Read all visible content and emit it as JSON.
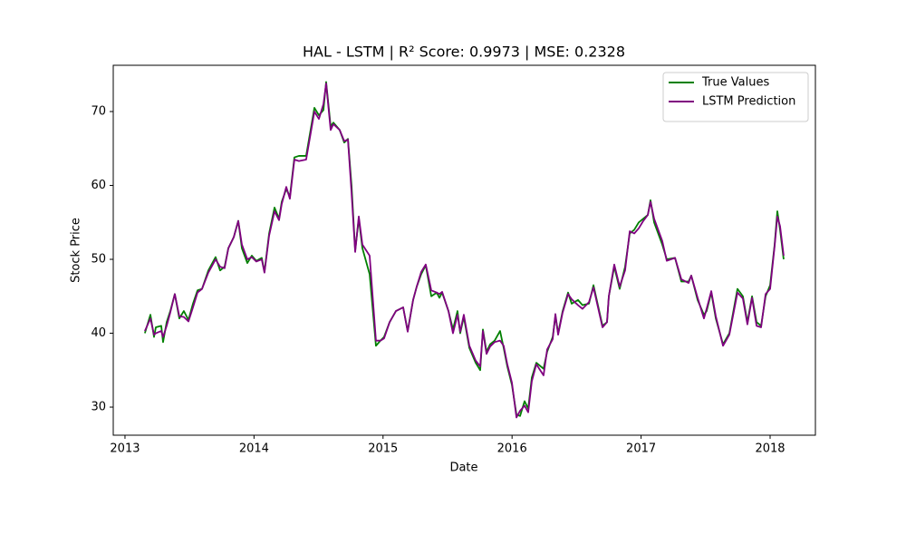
{
  "chart_data": {
    "type": "line",
    "title": "HAL - LSTM | R² Score: 0.9973 | MSE: 0.2328",
    "x_label": "Date",
    "y_label": "Stock Price",
    "x": [
      2013.154,
      2013.197,
      2013.225,
      2013.239,
      2013.281,
      2013.295,
      2013.323,
      2013.351,
      2013.386,
      2013.421,
      2013.456,
      2013.492,
      2013.527,
      2013.562,
      2013.597,
      2013.646,
      2013.702,
      2013.737,
      2013.772,
      2013.801,
      2013.843,
      2013.878,
      2013.906,
      2013.948,
      2013.983,
      2014.018,
      2014.06,
      2014.081,
      2014.117,
      2014.159,
      2014.194,
      2014.215,
      2014.25,
      2014.278,
      2014.313,
      2014.348,
      2014.404,
      2014.468,
      2014.503,
      2014.538,
      2014.559,
      2014.594,
      2014.615,
      2014.664,
      2014.699,
      2014.728,
      2014.756,
      2014.784,
      2014.812,
      2014.84,
      2014.896,
      2014.945,
      2014.98,
      2015.008,
      2015.051,
      2015.1,
      2015.156,
      2015.191,
      2015.233,
      2015.261,
      2015.296,
      2015.331,
      2015.374,
      2015.416,
      2015.437,
      2015.458,
      2015.507,
      2015.542,
      2015.577,
      2015.598,
      2015.626,
      2015.669,
      2015.718,
      2015.753,
      2015.774,
      2015.802,
      2015.83,
      2015.865,
      2015.907,
      2015.935,
      2015.963,
      2015.999,
      2016.034,
      2016.062,
      2016.097,
      2016.125,
      2016.153,
      2016.188,
      2016.244,
      2016.272,
      2016.315,
      2016.336,
      2016.357,
      2016.392,
      2016.434,
      2016.462,
      2016.511,
      2016.546,
      2016.596,
      2016.631,
      2016.701,
      2016.736,
      2016.75,
      2016.792,
      2016.834,
      2016.876,
      2016.912,
      2016.947,
      2016.982,
      2017.017,
      2017.052,
      2017.073,
      2017.101,
      2017.164,
      2017.199,
      2017.263,
      2017.312,
      2017.368,
      2017.389,
      2017.438,
      2017.487,
      2017.508,
      2017.544,
      2017.579,
      2017.635,
      2017.684,
      2017.747,
      2017.789,
      2017.824,
      2017.86,
      2017.895,
      2017.93,
      2017.965,
      2018.0,
      2018.035,
      2018.056,
      2018.077,
      2018.105
    ],
    "series": [
      {
        "name": "True Values",
        "color": "#008000",
        "values": [
          40,
          42.5,
          39.5,
          40.8,
          41,
          38.8,
          41.5,
          43,
          45.3,
          42,
          43,
          41.8,
          44,
          45.8,
          46,
          48.5,
          50.3,
          48.5,
          49,
          51.5,
          53,
          55.2,
          51.5,
          49.5,
          50.5,
          49.8,
          50.2,
          48.3,
          53.5,
          57,
          55.5,
          57.8,
          59.5,
          58.5,
          63.8,
          64,
          64,
          70.5,
          69.5,
          70.2,
          74,
          68,
          68.5,
          67.5,
          65.8,
          66.3,
          60,
          51.2,
          55.5,
          51.5,
          48,
          38.3,
          39,
          39.5,
          41.5,
          43,
          43.5,
          40.3,
          44.5,
          46.3,
          48,
          49.2,
          45,
          45.5,
          44.8,
          45.5,
          43,
          40.5,
          43,
          40,
          42.2,
          38,
          36,
          35,
          40.5,
          37.5,
          38.5,
          39,
          40.3,
          38,
          35.5,
          33,
          29,
          28.8,
          30.8,
          29.8,
          34,
          36,
          35.2,
          37.5,
          39.5,
          42.3,
          40,
          43,
          45.5,
          44,
          44.5,
          43.8,
          44,
          46.5,
          41,
          41.5,
          45,
          49,
          46,
          49,
          53.5,
          54,
          55,
          55.5,
          56,
          58,
          55,
          52,
          50,
          50.2,
          47,
          47,
          47.8,
          44.5,
          42.5,
          43,
          45.5,
          42,
          38.5,
          40,
          46,
          45,
          41.5,
          45,
          41.5,
          41,
          45,
          46.5,
          52,
          56.5,
          54,
          50
        ]
      },
      {
        "name": "LSTM Prediction",
        "color": "#800080",
        "values": [
          40.3,
          42,
          39.8,
          40,
          40.3,
          39.5,
          41,
          42.8,
          45.3,
          42.3,
          42.2,
          41.6,
          43.5,
          45.5,
          46,
          48.2,
          50,
          49,
          48.8,
          51.5,
          53,
          55.2,
          52,
          50,
          50.3,
          49.7,
          50,
          48.2,
          53.2,
          56.5,
          55.3,
          57.5,
          59.8,
          58.2,
          63.5,
          63.3,
          63.5,
          70,
          69,
          71,
          73.8,
          67.5,
          68.3,
          67.5,
          66,
          66.2,
          59,
          51,
          55.8,
          52,
          50.5,
          39,
          39,
          39.3,
          41.5,
          43,
          43.5,
          40.2,
          44.5,
          46.3,
          48.3,
          49.3,
          45.8,
          45.5,
          45.3,
          45.6,
          43,
          40,
          42.5,
          40.2,
          42.5,
          38.3,
          36.3,
          35.5,
          40.3,
          37.2,
          38.2,
          38.8,
          39,
          38.3,
          35.8,
          33.3,
          28.6,
          29.5,
          30.2,
          29.3,
          33.5,
          35.8,
          34.3,
          37.8,
          39.2,
          42.6,
          39.8,
          42.8,
          45.3,
          44.6,
          43.8,
          43.3,
          44.2,
          46.2,
          40.8,
          41.5,
          45,
          49.3,
          46.3,
          48.5,
          53.8,
          53.5,
          54.2,
          55.2,
          56,
          57.8,
          55.5,
          52.5,
          49.8,
          50.2,
          47.3,
          46.8,
          47.8,
          44.8,
          42,
          43.3,
          45.7,
          42.3,
          38.3,
          39.8,
          45.5,
          44.7,
          41.2,
          44.8,
          41,
          40.8,
          45.3,
          46,
          51.8,
          55.8,
          54.5,
          50.5
        ]
      }
    ],
    "xlim": [
      2012.909,
      2018.351
    ],
    "xticks": [
      2013,
      2014,
      2015,
      2016,
      2017,
      2018
    ],
    "ylim": [
      26.2,
      76.26
    ],
    "yticks": [
      30,
      40,
      50,
      60,
      70
    ],
    "legend": "upper right",
    "grid": false
  }
}
